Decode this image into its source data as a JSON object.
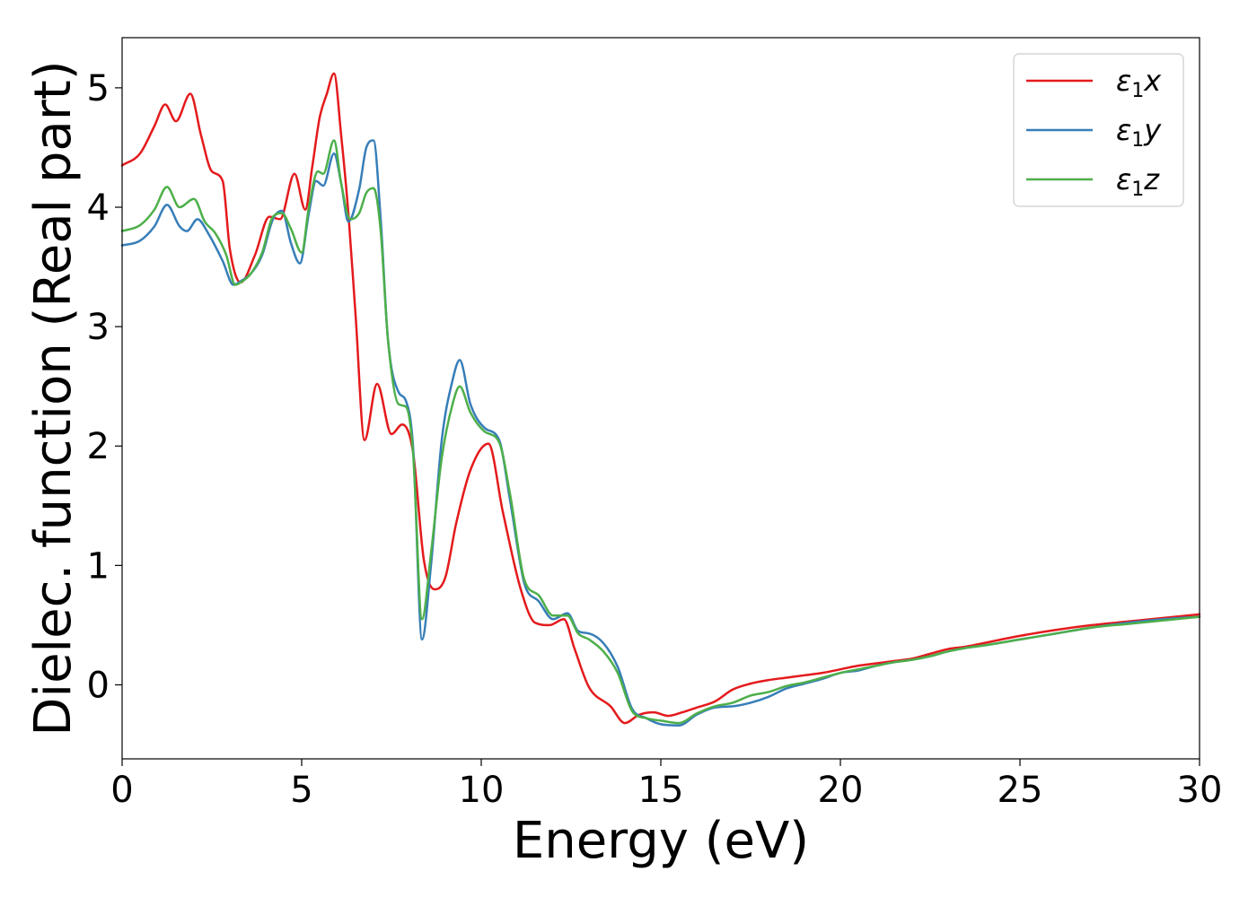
{
  "chart_data": {
    "type": "line",
    "title": "",
    "xlabel": "Energy (eV)",
    "ylabel": "Dielec. function (Real part)",
    "xlim": [
      0,
      30
    ],
    "ylim": [
      -0.62,
      5.42
    ],
    "xticks": [
      0,
      5,
      10,
      15,
      20,
      25,
      30
    ],
    "xtick_labels": [
      "0",
      "5",
      "10",
      "15",
      "20",
      "25",
      "30"
    ],
    "yticks": [
      0,
      1,
      2,
      3,
      4,
      5
    ],
    "ytick_labels": [
      "0",
      "1",
      "2",
      "3",
      "4",
      "5"
    ],
    "grid": false,
    "legend_position": "top-right",
    "series": [
      {
        "name": "ε₁x",
        "legend_base": "ε",
        "legend_sub": "1",
        "legend_var": "x",
        "color": "#e41a1c",
        "x": [
          0,
          0.5,
          0.9,
          1.2,
          1.5,
          1.9,
          2.2,
          2.5,
          2.8,
          3.0,
          3.3,
          3.7,
          4.1,
          4.4,
          4.8,
          5.1,
          5.3,
          5.5,
          5.7,
          5.9,
          6.1,
          6.3,
          6.5,
          6.75,
          7.1,
          7.5,
          7.8,
          8.1,
          8.4,
          8.7,
          9.0,
          9.3,
          9.7,
          10.2,
          10.6,
          11.1,
          11.5,
          11.9,
          12.3,
          12.6,
          13.0,
          13.6,
          14.0,
          14.4,
          14.8,
          15.2,
          15.6,
          16.0,
          16.5,
          17.0,
          17.5,
          18.0,
          18.5,
          19.0,
          19.5,
          20.0,
          20.5,
          21.0,
          21.5,
          22.0,
          22.5,
          23.0,
          23.5,
          24.0,
          25.0,
          26.0,
          27.0,
          28.0,
          29.0,
          30.0
        ],
        "values": [
          4.35,
          4.45,
          4.68,
          4.86,
          4.72,
          4.95,
          4.6,
          4.3,
          4.22,
          3.65,
          3.37,
          3.6,
          3.92,
          3.9,
          4.28,
          3.98,
          4.35,
          4.75,
          4.95,
          5.12,
          4.6,
          3.95,
          3.1,
          2.05,
          2.52,
          2.1,
          2.18,
          1.95,
          1.05,
          0.8,
          0.9,
          1.35,
          1.8,
          2.02,
          1.45,
          0.8,
          0.52,
          0.5,
          0.55,
          0.3,
          -0.02,
          -0.18,
          -0.32,
          -0.25,
          -0.23,
          -0.26,
          -0.23,
          -0.19,
          -0.14,
          -0.04,
          0.01,
          0.04,
          0.06,
          0.08,
          0.1,
          0.13,
          0.16,
          0.18,
          0.2,
          0.22,
          0.26,
          0.3,
          0.32,
          0.35,
          0.41,
          0.46,
          0.5,
          0.53,
          0.56,
          0.59
        ]
      },
      {
        "name": "ε₁y",
        "legend_base": "ε",
        "legend_sub": "1",
        "legend_var": "y",
        "color": "#377eb8",
        "x": [
          0,
          0.5,
          0.9,
          1.25,
          1.6,
          1.8,
          2.1,
          2.4,
          2.8,
          3.1,
          3.3,
          3.6,
          3.9,
          4.2,
          4.45,
          4.7,
          4.95,
          5.2,
          5.4,
          5.6,
          5.9,
          6.1,
          6.3,
          6.6,
          6.8,
          7.0,
          7.2,
          7.4,
          7.7,
          7.9,
          8.1,
          8.35,
          8.6,
          8.9,
          9.2,
          9.4,
          9.7,
          10.1,
          10.5,
          10.8,
          11.2,
          11.6,
          12.0,
          12.4,
          12.7,
          13.0,
          13.4,
          13.8,
          14.2,
          14.6,
          15.0,
          15.5,
          16.0,
          16.5,
          17.0,
          17.5,
          18.0,
          18.5,
          19.0,
          19.5,
          20.0,
          20.5,
          21.0,
          21.5,
          22.0,
          22.5,
          23.0,
          23.5,
          24.0,
          25.0,
          26.0,
          27.0,
          28.0,
          29.0,
          30.0
        ],
        "values": [
          3.68,
          3.72,
          3.84,
          4.02,
          3.84,
          3.8,
          3.9,
          3.78,
          3.55,
          3.35,
          3.38,
          3.45,
          3.6,
          3.9,
          3.97,
          3.7,
          3.53,
          3.95,
          4.22,
          4.18,
          4.45,
          4.2,
          3.88,
          4.15,
          4.5,
          4.56,
          3.9,
          2.9,
          2.45,
          2.38,
          2.0,
          0.38,
          1.0,
          2.05,
          2.55,
          2.72,
          2.35,
          2.15,
          2.05,
          1.55,
          0.85,
          0.7,
          0.55,
          0.6,
          0.45,
          0.43,
          0.35,
          0.15,
          -0.2,
          -0.28,
          -0.33,
          -0.34,
          -0.25,
          -0.19,
          -0.18,
          -0.15,
          -0.1,
          -0.03,
          0.01,
          0.05,
          0.1,
          0.12,
          0.16,
          0.19,
          0.21,
          0.24,
          0.28,
          0.31,
          0.33,
          0.38,
          0.43,
          0.48,
          0.52,
          0.55,
          0.57
        ]
      },
      {
        "name": "ε₁z",
        "legend_base": "ε",
        "legend_sub": "1",
        "legend_var": "z",
        "color": "#4daf4a",
        "x": [
          0,
          0.5,
          0.9,
          1.25,
          1.6,
          2.0,
          2.3,
          2.6,
          2.9,
          3.15,
          3.3,
          3.6,
          3.9,
          4.2,
          4.45,
          4.7,
          5.0,
          5.2,
          5.45,
          5.6,
          5.9,
          6.1,
          6.35,
          6.6,
          6.8,
          7.0,
          7.2,
          7.4,
          7.7,
          7.9,
          8.1,
          8.35,
          8.6,
          8.9,
          9.2,
          9.4,
          9.7,
          10.1,
          10.5,
          10.8,
          11.2,
          11.6,
          12.0,
          12.4,
          12.7,
          13.0,
          13.4,
          13.8,
          14.2,
          14.6,
          15.0,
          15.5,
          16.0,
          16.5,
          17.0,
          17.5,
          18.0,
          18.5,
          19.0,
          19.5,
          20.0,
          20.5,
          21.0,
          21.5,
          22.0,
          22.5,
          23.0,
          23.5,
          24.0,
          25.0,
          26.0,
          27.0,
          28.0,
          29.0,
          30.0
        ],
        "values": [
          3.8,
          3.85,
          3.98,
          4.17,
          4.0,
          4.07,
          3.88,
          3.78,
          3.6,
          3.35,
          3.37,
          3.45,
          3.62,
          3.92,
          3.95,
          3.82,
          3.62,
          4.0,
          4.3,
          4.28,
          4.56,
          4.2,
          3.9,
          3.95,
          4.12,
          4.16,
          3.8,
          2.9,
          2.35,
          2.33,
          1.95,
          0.55,
          1.1,
          1.9,
          2.35,
          2.5,
          2.28,
          2.12,
          2.03,
          1.6,
          0.88,
          0.75,
          0.58,
          0.58,
          0.43,
          0.38,
          0.28,
          0.1,
          -0.22,
          -0.28,
          -0.3,
          -0.32,
          -0.24,
          -0.18,
          -0.15,
          -0.09,
          -0.06,
          -0.01,
          0.02,
          0.06,
          0.1,
          0.13,
          0.16,
          0.19,
          0.21,
          0.24,
          0.28,
          0.31,
          0.33,
          0.38,
          0.43,
          0.48,
          0.51,
          0.54,
          0.57
        ]
      }
    ]
  }
}
